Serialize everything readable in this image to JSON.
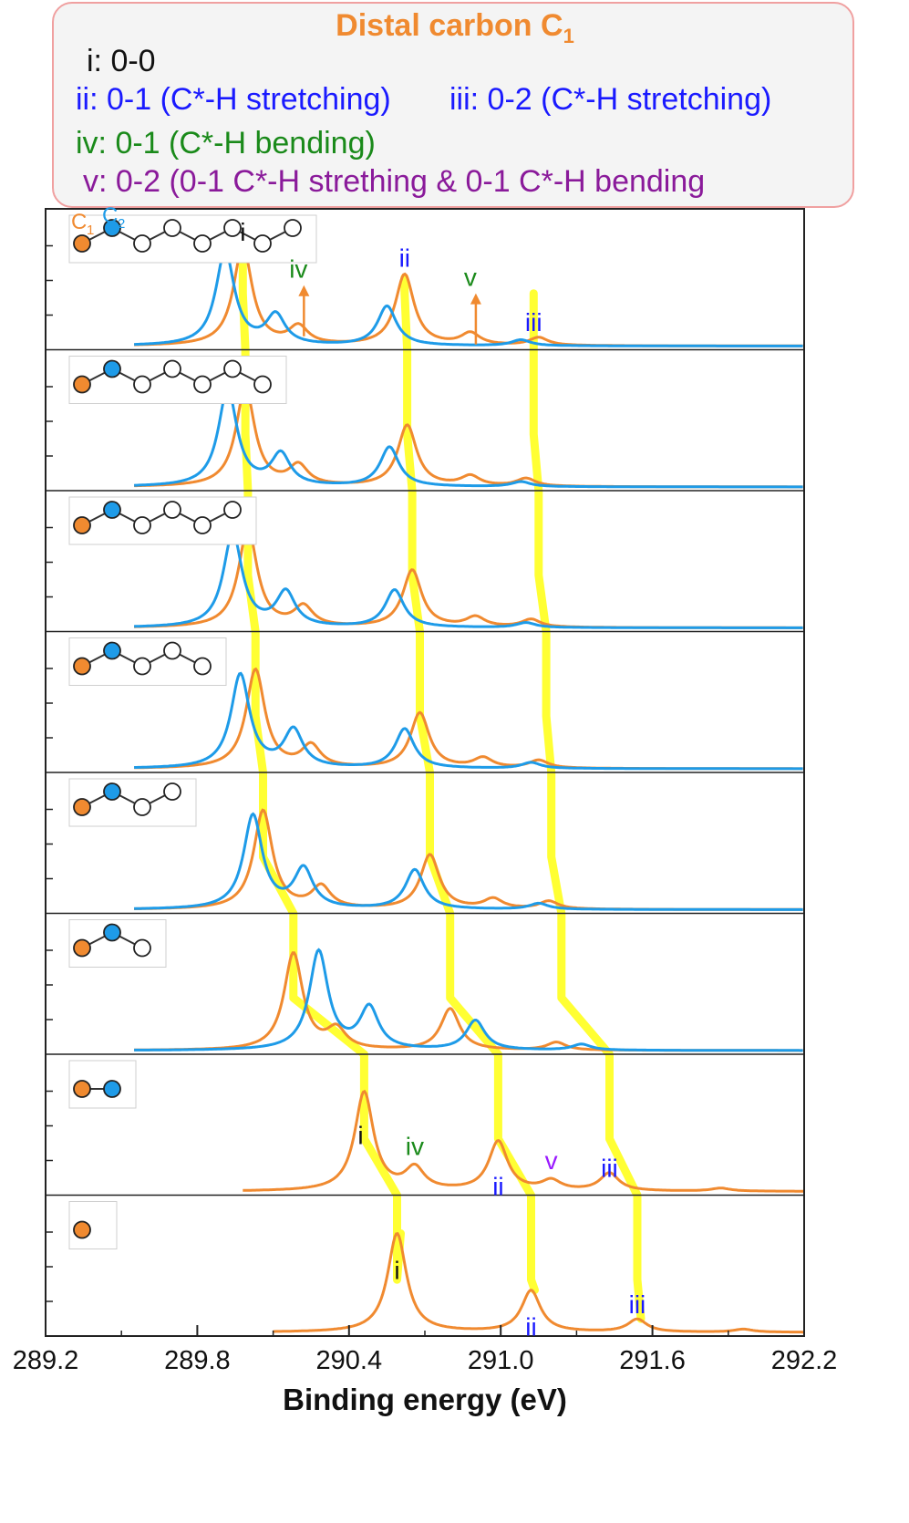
{
  "legend": {
    "title": "Distal carbon C",
    "title_sub": "1",
    "entries": [
      {
        "id": "i",
        "text": "i: 0-0",
        "color": "#111111"
      },
      {
        "id": "ii",
        "text": "ii: 0-1 (C*-H stretching)",
        "color": "#1a1aff"
      },
      {
        "id": "iii",
        "text": "iii: 0-2 (C*-H stretching)",
        "color": "#1a1aff"
      },
      {
        "id": "iv",
        "text": "iv: 0-1 (C*-H bending)",
        "color": "#1a8a1a"
      },
      {
        "id": "v",
        "text": "v: 0-2 (0-1 C*-H strething & 0-1 C*-H bending",
        "color": "#8a1a9a"
      }
    ]
  },
  "chart_data": {
    "type": "line",
    "title": "",
    "xlabel": "Binding energy (eV)",
    "ylabel": "",
    "xlim": [
      289.2,
      292.2
    ],
    "xticks": [
      "289.2",
      "289.8",
      "290.4",
      "291.0",
      "291.6",
      "292.2"
    ],
    "series_colors": {
      "C1": "#f08a30",
      "C2": "#1e9be8"
    },
    "atom_labels": {
      "c1": "C",
      "c1_sub": "1",
      "c2": "C",
      "c2_sub": "2"
    },
    "panels": [
      {
        "chain_length": 8,
        "c1_peaks": [
          [
            289.98,
            1.0
          ],
          [
            290.2,
            0.18
          ],
          [
            290.62,
            0.72
          ],
          [
            290.88,
            0.12
          ],
          [
            291.15,
            0.08
          ]
        ],
        "c2_peaks": [
          [
            289.91,
            0.95
          ],
          [
            290.11,
            0.3
          ],
          [
            290.55,
            0.4
          ],
          [
            291.08,
            0.06
          ]
        ]
      },
      {
        "chain_length": 7,
        "c1_peaks": [
          [
            289.99,
            1.0
          ],
          [
            290.2,
            0.2
          ],
          [
            290.63,
            0.62
          ],
          [
            290.88,
            0.1
          ],
          [
            291.1,
            0.08
          ]
        ],
        "c2_peaks": [
          [
            289.92,
            0.98
          ],
          [
            290.13,
            0.32
          ],
          [
            290.56,
            0.4
          ],
          [
            291.08,
            0.05
          ]
        ]
      },
      {
        "chain_length": 6,
        "c1_peaks": [
          [
            290.0,
            1.0
          ],
          [
            290.22,
            0.2
          ],
          [
            290.65,
            0.58
          ],
          [
            290.9,
            0.1
          ],
          [
            291.12,
            0.08
          ]
        ],
        "c2_peaks": [
          [
            289.94,
            0.95
          ],
          [
            290.15,
            0.35
          ],
          [
            290.58,
            0.38
          ],
          [
            291.1,
            0.05
          ]
        ]
      },
      {
        "chain_length": 5,
        "c1_peaks": [
          [
            290.03,
            1.0
          ],
          [
            290.25,
            0.22
          ],
          [
            290.68,
            0.56
          ],
          [
            290.93,
            0.1
          ],
          [
            291.15,
            0.08
          ]
        ],
        "c2_peaks": [
          [
            289.97,
            0.95
          ],
          [
            290.18,
            0.38
          ],
          [
            290.62,
            0.4
          ],
          [
            291.12,
            0.06
          ]
        ]
      },
      {
        "chain_length": 4,
        "c1_peaks": [
          [
            290.06,
            1.0
          ],
          [
            290.29,
            0.22
          ],
          [
            290.72,
            0.55
          ],
          [
            290.97,
            0.1
          ],
          [
            291.19,
            0.08
          ]
        ],
        "c2_peaks": [
          [
            290.02,
            0.95
          ],
          [
            290.22,
            0.4
          ],
          [
            290.66,
            0.4
          ],
          [
            291.15,
            0.06
          ]
        ]
      },
      {
        "chain_length": 3,
        "c1_peaks": [
          [
            290.18,
            0.98
          ],
          [
            290.35,
            0.2
          ],
          [
            290.8,
            0.42
          ],
          [
            291.22,
            0.08
          ]
        ],
        "c2_peaks": [
          [
            290.28,
            1.0
          ],
          [
            290.48,
            0.42
          ],
          [
            290.9,
            0.3
          ],
          [
            291.32,
            0.06
          ]
        ]
      },
      {
        "chain_length": 2,
        "c1_peaks": [
          [
            290.46,
            1.0
          ],
          [
            290.66,
            0.22
          ],
          [
            290.99,
            0.5
          ],
          [
            291.2,
            0.1
          ],
          [
            291.43,
            0.18
          ],
          [
            291.87,
            0.03
          ]
        ]
      },
      {
        "chain_length": 1,
        "c1_peaks": [
          [
            290.59,
            1.0
          ],
          [
            291.12,
            0.42
          ],
          [
            291.54,
            0.13
          ],
          [
            291.96,
            0.03
          ]
        ]
      }
    ],
    "peak_annotations": [
      {
        "panel": 0,
        "text": "i",
        "x": 289.98,
        "color": "#111111"
      },
      {
        "panel": 0,
        "text": "iv",
        "x": 290.2,
        "color": "#1a8a1a",
        "arrow": true
      },
      {
        "panel": 0,
        "text": "ii",
        "x": 290.62,
        "color": "#1a1aff"
      },
      {
        "panel": 0,
        "text": "v",
        "x": 290.88,
        "color": "#1a8a1a",
        "arrow": true
      },
      {
        "panel": 0,
        "text": "iii",
        "x": 291.13,
        "color": "#1a1aff"
      },
      {
        "panel": 6,
        "text": "i",
        "x": 290.46,
        "color": "#111111"
      },
      {
        "panel": 6,
        "text": "iv",
        "x": 290.66,
        "color": "#1a8a1a"
      },
      {
        "panel": 6,
        "text": "ii",
        "x": 290.99,
        "color": "#1a1aff"
      },
      {
        "panel": 6,
        "text": "v",
        "x": 291.2,
        "color": "#9a1aff"
      },
      {
        "panel": 6,
        "text": "iii",
        "x": 291.43,
        "color": "#1a1aff"
      },
      {
        "panel": 7,
        "text": "i",
        "x": 290.59,
        "color": "#111111"
      },
      {
        "panel": 7,
        "text": "ii",
        "x": 291.12,
        "color": "#1a1aff"
      },
      {
        "panel": 7,
        "text": "iii",
        "x": 291.54,
        "color": "#1a1aff"
      }
    ],
    "guide_lines": [
      {
        "id": "i",
        "x": [
          289.98,
          289.99,
          290.0,
          290.03,
          290.06,
          290.18,
          290.46,
          290.59
        ]
      },
      {
        "id": "ii",
        "x": [
          290.62,
          290.63,
          290.65,
          290.68,
          290.72,
          290.8,
          290.99,
          291.12
        ]
      },
      {
        "id": "iii",
        "x": [
          291.13,
          291.13,
          291.15,
          291.18,
          291.2,
          291.24,
          291.43,
          291.54
        ]
      }
    ],
    "guide_color": "#ffff33"
  }
}
